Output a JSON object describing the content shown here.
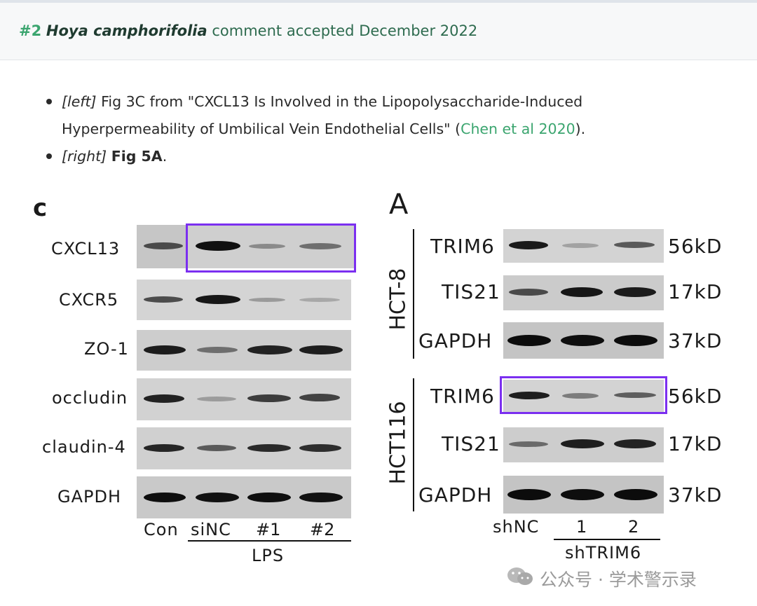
{
  "header": {
    "number": "#2",
    "species": "Hoya camphorifolia",
    "rest": "comment accepted December 2022"
  },
  "bullets": [
    {
      "tag": "[left]",
      "text1": "Fig 3C from \"CXCL13 Is Involved in the Lipopolysaccharide-Induced Hyperpermeability of Umbilical Vein Endothelial Cells\" (",
      "link": "Chen et al 2020",
      "text2": ")."
    },
    {
      "tag": "[right]",
      "bold": "Fig 5A",
      "text2": "."
    }
  ],
  "left_panel": {
    "letter": "c",
    "rows": [
      "CXCL13",
      "CXCR5",
      "ZO-1",
      "occludin",
      "claudin-4",
      "GAPDH"
    ],
    "lanes": [
      "Con",
      "siNC",
      "#1",
      "#2"
    ],
    "group_label": "LPS"
  },
  "right_panel": {
    "letter": "A",
    "groups": [
      {
        "cell_line": "HCT-8",
        "rows": [
          "TRIM6",
          "TIS21",
          "GAPDH"
        ],
        "sizes": [
          "56kD",
          "17kD",
          "37kD"
        ]
      },
      {
        "cell_line": "HCT116",
        "rows": [
          "TRIM6",
          "TIS21",
          "GAPDH"
        ],
        "sizes": [
          "56kD",
          "17kD",
          "37kD"
        ]
      }
    ],
    "lanes": [
      "shNC",
      "1",
      "2"
    ],
    "group_label": "shTRIM6"
  },
  "watermark": {
    "text": "公众号 · 学术警示录"
  },
  "colors": {
    "highlight": "#7b2ff0",
    "accent_green": "#3ba56f",
    "header_green": "#2e6b4f"
  }
}
